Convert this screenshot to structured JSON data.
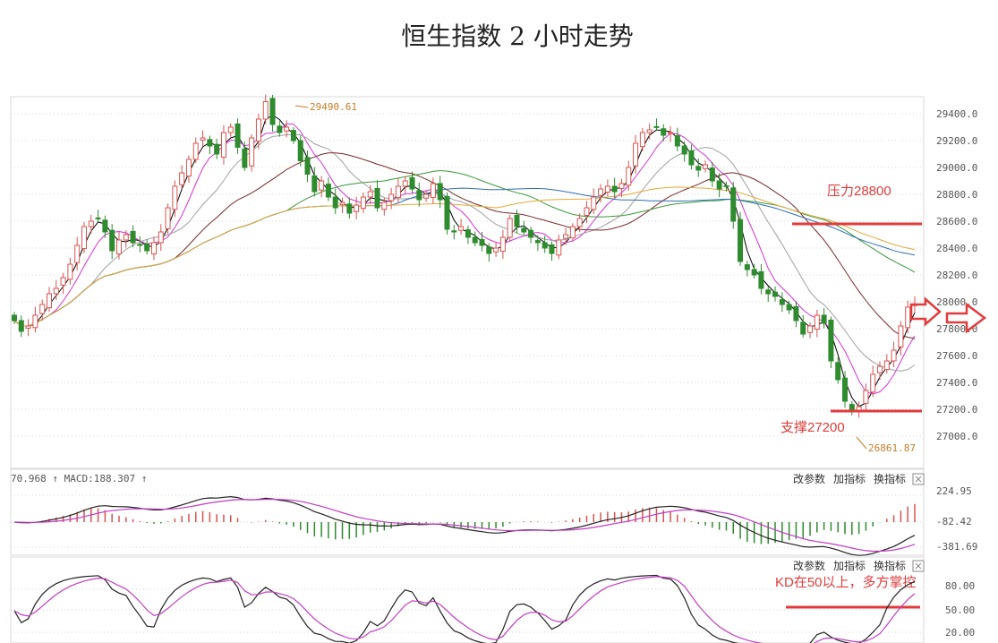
{
  "title": "恒生指数 2 小时走势",
  "price_panel": {
    "y_ticks": [
      "29400.0",
      "29200.0",
      "29000.0",
      "28800.0",
      "28600.0",
      "28400.0",
      "28200.0",
      "28000.0",
      "27800.0",
      "27600.0",
      "27400.0",
      "27200.0",
      "27000.0"
    ],
    "high_label": "29490.61",
    "low_label": "26861.87",
    "resistance_label": "压力28800",
    "support_label": "支撑27200"
  },
  "macd_panel": {
    "label_left": "70.968 ↑ MACD:188.307 ↑",
    "y_ticks": [
      "224.95",
      "-82.42",
      "-381.69"
    ],
    "buttons": [
      "改参数",
      "加指标",
      "换指标"
    ]
  },
  "kd_panel": {
    "y_ticks": [
      "80.00",
      "50.00",
      "20.00"
    ],
    "buttons": [
      "改参数",
      "加指标",
      "换指标"
    ],
    "annotation": "KD在50以上，多方掌控"
  },
  "colors": {
    "up": "#d9534f",
    "down": "#2e8b2e",
    "annotation": "#e23b3b",
    "ma5": "#000000",
    "ma10": "#d633d6",
    "ma20": "#a0a0a0",
    "ma60": "#7a2a2a",
    "ma120": "#3a9a3a",
    "ma250": "#2f6fb5",
    "ma500": "#e8a838"
  },
  "icons": [
    "close-icon",
    "right-arrow-icon"
  ],
  "chart_data": {
    "type": "candlestick",
    "closes": [
      27860,
      27780,
      27820,
      27900,
      27980,
      28060,
      28100,
      28180,
      28280,
      28420,
      28560,
      28600,
      28620,
      28520,
      28380,
      28460,
      28500,
      28440,
      28420,
      28380,
      28440,
      28520,
      28700,
      28860,
      28960,
      29060,
      29180,
      29220,
      29160,
      29100,
      29260,
      29300,
      29150,
      29000,
      29220,
      29360,
      29490,
      29320,
      29260,
      29300,
      29200,
      29050,
      28950,
      28820,
      28900,
      28780,
      28700,
      28740,
      28660,
      28720,
      28780,
      28820,
      28700,
      28740,
      28800,
      28860,
      28900,
      28840,
      28760,
      28800,
      28880,
      28760,
      28540,
      28520,
      28560,
      28480,
      28440,
      28420,
      28360,
      28400,
      28480,
      28620,
      28560,
      28520,
      28480,
      28440,
      28400,
      28360,
      28460,
      28500,
      28560,
      28620,
      28700,
      28780,
      28840,
      28860,
      28820,
      28880,
      29000,
      29180,
      29260,
      29280,
      29300,
      29240,
      29260,
      29160,
      29100,
      29020,
      28980,
      29020,
      28900,
      28840,
      28860,
      28600,
      28300,
      28240,
      28200,
      28100,
      28060,
      28040,
      27980,
      27940,
      27860,
      27760,
      27820,
      27900,
      27840,
      27560,
      27420,
      27260,
      27180,
      27220,
      27340,
      27460,
      27520,
      27560,
      27640,
      27820,
      27960,
      27980
    ],
    "y_range": [
      26861.87,
      29490.61
    ],
    "high_point": {
      "value": 29490.61
    },
    "low_point": {
      "value": 26861.87
    },
    "resistance": 28800,
    "support": 27200,
    "macd_ticks": [
      224.95,
      -82.42,
      -381.69
    ],
    "kd_ticks": [
      80,
      50,
      20
    ],
    "kd_threshold": 50
  }
}
